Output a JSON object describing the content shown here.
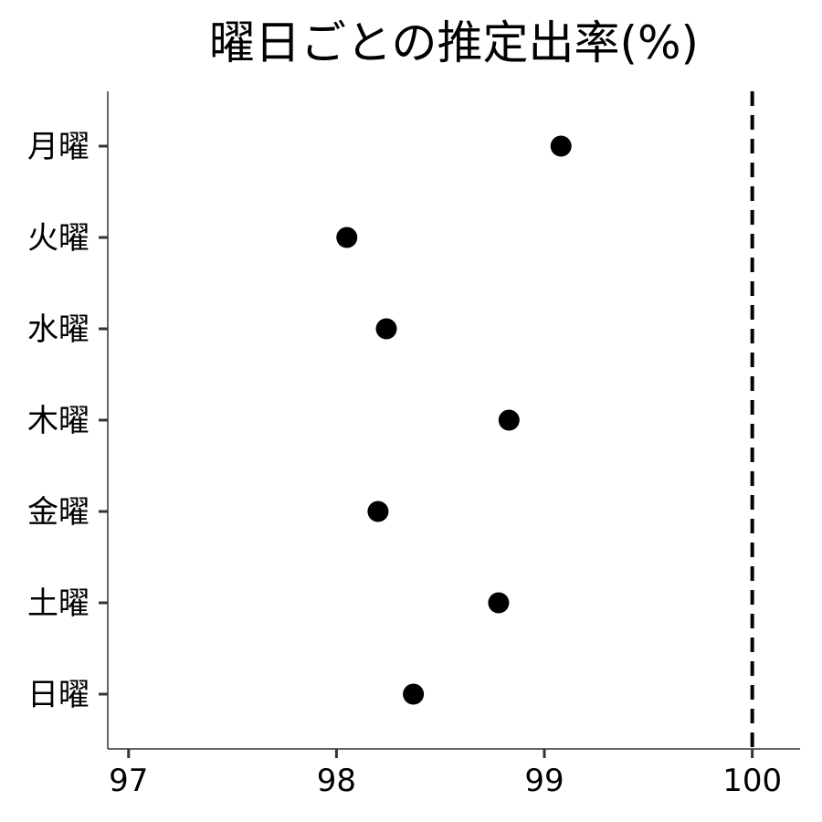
{
  "chart_data": {
    "type": "scatter",
    "title": "曜日ごとの推定出率(%)",
    "xlabel": "",
    "ylabel": "",
    "xlim": [
      96.9,
      100.23
    ],
    "x_ticks": [
      97,
      98,
      99,
      100
    ],
    "categories": [
      "月曜",
      "火曜",
      "水曜",
      "木曜",
      "金曜",
      "土曜",
      "日曜"
    ],
    "values": [
      99.08,
      98.05,
      98.24,
      98.83,
      98.2,
      98.78,
      98.37
    ],
    "reference_line": {
      "x": 100,
      "style": "dashed"
    },
    "grid": false,
    "legend": "none",
    "point_color": "#000000"
  }
}
